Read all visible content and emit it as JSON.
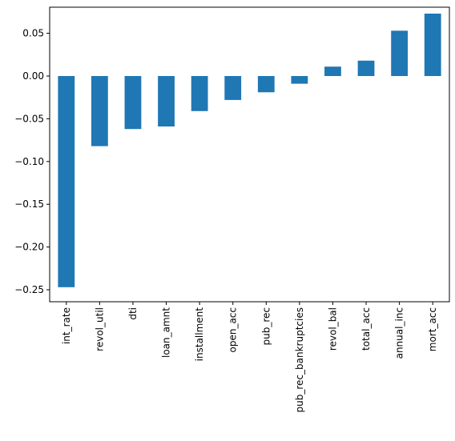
{
  "chart_data": {
    "type": "bar",
    "title": "",
    "xlabel": "",
    "ylabel": "",
    "categories": [
      "int_rate",
      "revol_util",
      "dti",
      "loan_amnt",
      "installment",
      "open_acc",
      "pub_rec",
      "pub_rec_bankruptcies",
      "revol_bal",
      "total_acc",
      "annual_inc",
      "mort_acc"
    ],
    "values": [
      -0.247,
      -0.082,
      -0.062,
      -0.059,
      -0.041,
      -0.028,
      -0.019,
      -0.009,
      0.011,
      0.018,
      0.053,
      0.073
    ],
    "yticks": [
      "−0.25",
      "−0.20",
      "−0.15",
      "−0.10",
      "−0.05",
      "0.00",
      "0.05"
    ],
    "ytick_values": [
      -0.25,
      -0.2,
      -0.15,
      -0.1,
      -0.05,
      0.0,
      0.05
    ],
    "ylim": [
      -0.264,
      0.0805
    ],
    "grid": false,
    "bar_color": "#1f77b4"
  }
}
